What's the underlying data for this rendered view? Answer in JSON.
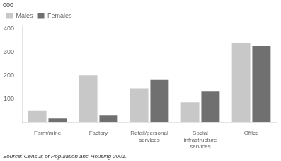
{
  "chart_data": {
    "type": "bar",
    "categories": [
      "Farm/mine",
      "Factory",
      "Retail/personal\nservices",
      "Social\ninfrastructure\nservices",
      "Office"
    ],
    "series": [
      {
        "name": "Males",
        "color": "#c8c8c8",
        "values": [
          50,
          200,
          145,
          85,
          340
        ]
      },
      {
        "name": "Females",
        "color": "#707070",
        "values": [
          15,
          30,
          180,
          130,
          325
        ]
      }
    ],
    "ylabel": "000",
    "annotations": [
      "Source: Census of Population and Housing 2001."
    ],
    "ylim": [
      0,
      410
    ],
    "yticks": [
      {
        "value": 0,
        "label": ""
      },
      100,
      200,
      300,
      400
    ],
    "grid": false,
    "legend": "upper left"
  }
}
